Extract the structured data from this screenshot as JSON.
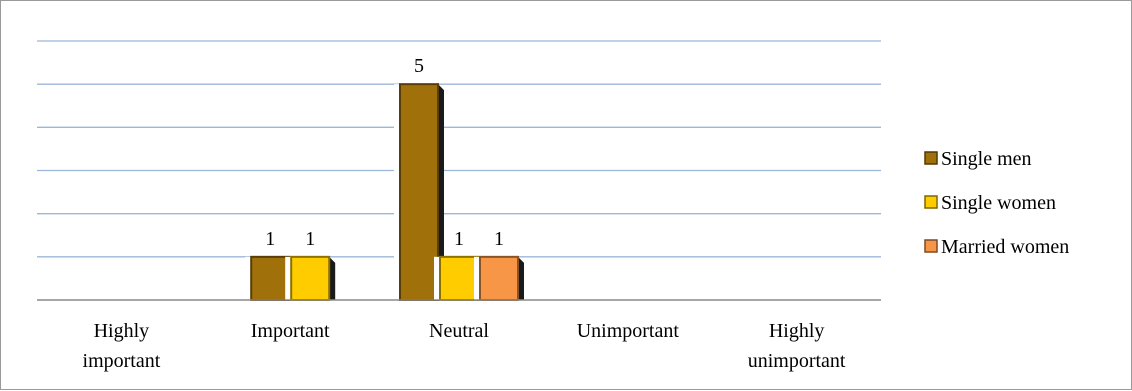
{
  "chart_data": {
    "type": "bar",
    "title": "",
    "xlabel": "",
    "ylabel": "",
    "ylim": [
      0,
      6
    ],
    "grid": true,
    "legend_position": "right",
    "categories": [
      [
        "Highly",
        "important"
      ],
      [
        "Important"
      ],
      [
        "Neutral"
      ],
      [
        "Unimportant"
      ],
      [
        "Highly",
        "unimportant"
      ]
    ],
    "series": [
      {
        "name": "Single men",
        "values": [
          0,
          1,
          5,
          0,
          0
        ],
        "color": "#a0700a"
      },
      {
        "name": "Single women",
        "values": [
          0,
          1,
          1,
          0,
          0
        ],
        "color": "#ffcc00"
      },
      {
        "name": "Married women",
        "values": [
          0,
          0,
          1,
          0,
          0
        ],
        "color": "#f79646"
      }
    ]
  }
}
